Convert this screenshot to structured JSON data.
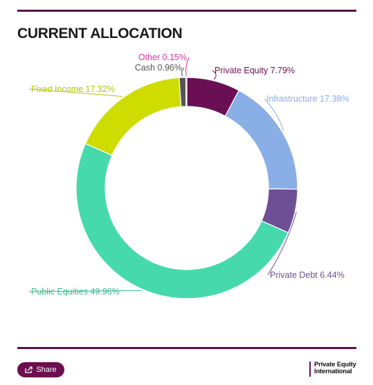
{
  "header": {
    "title": "CURRENT ALLOCATION"
  },
  "footer": {
    "share_label": "Share",
    "brand_line1": "Private Equity",
    "brand_line2": "International"
  },
  "chart_data": {
    "type": "pie",
    "donut": true,
    "title": "CURRENT ALLOCATION",
    "slices": [
      {
        "label": "Private Equity",
        "value": 7.79,
        "display": "Private Equity 7.79%",
        "color": "#6b0f55"
      },
      {
        "label": "Infrastructure",
        "value": 17.38,
        "display": "Infrastructure 17.38%",
        "color": "#8aaee6"
      },
      {
        "label": "Private Debt",
        "value": 6.44,
        "display": "Private Debt 6.44%",
        "color": "#6e4f96"
      },
      {
        "label": "Public Equities",
        "value": 49.96,
        "display": "Public Equities 49.96%",
        "color": "#45d9ac"
      },
      {
        "label": "Fixed Income",
        "value": 17.32,
        "display": "Fixed Income 17.32%",
        "color": "#cfdc00"
      },
      {
        "label": "Cash",
        "value": 0.96,
        "display": "Cash 0.96%",
        "color": "#555555"
      },
      {
        "label": "Other",
        "value": 0.15,
        "display": "Other 0.15%",
        "color": "#e62ea6"
      }
    ],
    "label_colors": {
      "Private Equity": "#6b0f55",
      "Infrastructure": "#8aaee6",
      "Private Debt": "#6e4f96",
      "Public Equities": "#33bd92",
      "Fixed Income": "#b9c400",
      "Cash": "#555555",
      "Other": "#e62ea6"
    },
    "legend": "none"
  }
}
